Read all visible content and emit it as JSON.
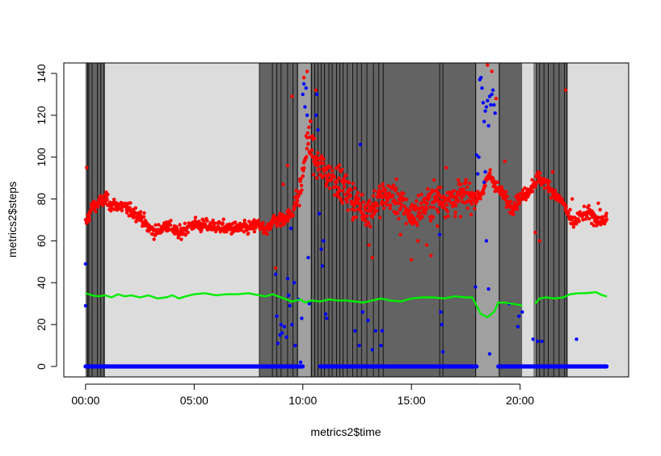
{
  "chart_data": {
    "type": "scatter",
    "title": "",
    "xlabel": "metrics2$time",
    "ylabel": "metrics2$steps",
    "xlim": [
      -1,
      25
    ],
    "ylim": [
      -5,
      145
    ],
    "xticks": [
      0,
      5,
      10,
      15,
      20
    ],
    "xtick_labels": [
      "00:00",
      "05:00",
      "10:00",
      "15:00",
      "20:00"
    ],
    "yticks": [
      0,
      20,
      40,
      60,
      80,
      100,
      120,
      140
    ],
    "ytick_labels": [
      "0",
      "20",
      "40",
      "60",
      "80",
      "100",
      "120",
      "140"
    ],
    "grid": false,
    "legend": "none",
    "colors": {
      "dark_band": "#636363",
      "mid_band": "#a0a0a0",
      "light_band": "#dcdcdc",
      "red_series": "#ff0000",
      "blue_series": "#0000ff",
      "green_series": "#00ee00"
    },
    "background_bands": [
      {
        "start": 0.0,
        "end": 0.9,
        "shade": "dark"
      },
      {
        "start": 0.9,
        "end": 8.0,
        "shade": "light"
      },
      {
        "start": 8.0,
        "end": 9.8,
        "shade": "dark"
      },
      {
        "start": 9.8,
        "end": 10.35,
        "shade": "mid"
      },
      {
        "start": 10.35,
        "end": 18.0,
        "shade": "dark"
      },
      {
        "start": 18.0,
        "end": 19.0,
        "shade": "mid"
      },
      {
        "start": 19.0,
        "end": 20.1,
        "shade": "dark"
      },
      {
        "start": 20.1,
        "end": 20.7,
        "shade": "light"
      },
      {
        "start": 20.7,
        "end": 22.2,
        "shade": "dark"
      },
      {
        "start": 22.2,
        "end": 25.0,
        "shade": "light"
      }
    ],
    "band_lines": [
      0.1,
      0.15,
      0.3,
      0.55,
      0.7,
      0.85,
      8.0,
      8.6,
      8.8,
      9.0,
      9.3,
      9.55,
      9.75,
      10.4,
      10.55,
      10.7,
      10.85,
      11.0,
      11.2,
      11.35,
      11.55,
      11.7,
      11.85,
      12.05,
      12.3,
      12.5,
      12.7,
      12.95,
      13.25,
      13.5,
      13.7,
      16.3,
      16.45,
      17.95,
      19.05,
      20.65,
      20.75,
      20.9,
      21.1,
      21.3,
      21.55,
      21.8,
      22.05,
      22.15
    ],
    "red_profile": [
      [
        0.0,
        68
      ],
      [
        0.3,
        76
      ],
      [
        0.6,
        78
      ],
      [
        0.9,
        80
      ],
      [
        1.2,
        77
      ],
      [
        1.5,
        77
      ],
      [
        1.8,
        76
      ],
      [
        2.1,
        74
      ],
      [
        2.5,
        72
      ],
      [
        2.9,
        66
      ],
      [
        3.3,
        64
      ],
      [
        3.7,
        68
      ],
      [
        4.0,
        66
      ],
      [
        4.3,
        63
      ],
      [
        4.6,
        66
      ],
      [
        5.0,
        68
      ],
      [
        5.5,
        67
      ],
      [
        6.0,
        67
      ],
      [
        6.5,
        66
      ],
      [
        7.0,
        66
      ],
      [
        7.5,
        66
      ],
      [
        8.0,
        68
      ],
      [
        8.3,
        64
      ],
      [
        8.6,
        70
      ],
      [
        9.0,
        70
      ],
      [
        9.5,
        73
      ],
      [
        9.9,
        85
      ],
      [
        10.1,
        100
      ],
      [
        10.3,
        110
      ],
      [
        10.6,
        97
      ],
      [
        11.0,
        93
      ],
      [
        11.5,
        90
      ],
      [
        12.0,
        84
      ],
      [
        12.5,
        78
      ],
      [
        13.0,
        74
      ],
      [
        13.5,
        80
      ],
      [
        14.0,
        82
      ],
      [
        14.5,
        78
      ],
      [
        15.0,
        72
      ],
      [
        15.5,
        76
      ],
      [
        16.0,
        80
      ],
      [
        16.5,
        80
      ],
      [
        17.0,
        80
      ],
      [
        17.5,
        82
      ],
      [
        18.0,
        80
      ],
      [
        18.3,
        84
      ],
      [
        18.6,
        92
      ],
      [
        18.8,
        88
      ],
      [
        19.2,
        82
      ],
      [
        19.6,
        76
      ],
      [
        20.0,
        80
      ],
      [
        20.4,
        84
      ],
      [
        20.8,
        90
      ],
      [
        21.2,
        88
      ],
      [
        21.6,
        82
      ],
      [
        22.0,
        78
      ],
      [
        22.4,
        68
      ],
      [
        22.8,
        72
      ],
      [
        23.2,
        73
      ],
      [
        23.6,
        70
      ],
      [
        24.0,
        70
      ]
    ],
    "red_outliers": [
      [
        0.05,
        95
      ],
      [
        8.75,
        47
      ],
      [
        8.95,
        73
      ],
      [
        9.1,
        87
      ],
      [
        9.3,
        96
      ],
      [
        9.5,
        129
      ],
      [
        9.7,
        84
      ],
      [
        10.05,
        138
      ],
      [
        10.2,
        141
      ],
      [
        10.6,
        132
      ],
      [
        11.6,
        95
      ],
      [
        12.3,
        70
      ],
      [
        12.5,
        78
      ],
      [
        13.05,
        58
      ],
      [
        13.2,
        52
      ],
      [
        14.5,
        63
      ],
      [
        15.0,
        51
      ],
      [
        15.3,
        60
      ],
      [
        15.7,
        58
      ],
      [
        15.9,
        53
      ],
      [
        16.2,
        67
      ],
      [
        16.6,
        95
      ],
      [
        17.1,
        80
      ],
      [
        18.5,
        144
      ],
      [
        18.7,
        141
      ],
      [
        18.9,
        128
      ],
      [
        19.3,
        98
      ],
      [
        19.9,
        82
      ],
      [
        20.7,
        64
      ],
      [
        20.9,
        60
      ],
      [
        21.3,
        86
      ],
      [
        21.5,
        93
      ],
      [
        22.1,
        132
      ],
      [
        22.4,
        80
      ],
      [
        23.6,
        78
      ]
    ],
    "blue_zero_segments": [
      [
        0.0,
        10.0
      ],
      [
        10.8,
        18.0
      ],
      [
        19.0,
        24.0
      ]
    ],
    "blue_points": [
      [
        0.0,
        49
      ],
      [
        0.0,
        29
      ],
      [
        8.75,
        44
      ],
      [
        8.8,
        24
      ],
      [
        8.85,
        11
      ],
      [
        8.95,
        15
      ],
      [
        9.0,
        20
      ],
      [
        9.05,
        16
      ],
      [
        9.15,
        19
      ],
      [
        9.25,
        14
      ],
      [
        9.3,
        42
      ],
      [
        9.35,
        34
      ],
      [
        9.4,
        29
      ],
      [
        9.45,
        66
      ],
      [
        9.5,
        20
      ],
      [
        9.6,
        40
      ],
      [
        9.65,
        10
      ],
      [
        9.8,
        32
      ],
      [
        9.9,
        2
      ],
      [
        9.95,
        23
      ],
      [
        10.0,
        130
      ],
      [
        10.05,
        135
      ],
      [
        10.1,
        124
      ],
      [
        10.15,
        133
      ],
      [
        10.2,
        120
      ],
      [
        10.25,
        52
      ],
      [
        10.3,
        30
      ],
      [
        10.6,
        120
      ],
      [
        10.65,
        130
      ],
      [
        10.7,
        113
      ],
      [
        10.75,
        73
      ],
      [
        10.85,
        56
      ],
      [
        10.9,
        48
      ],
      [
        10.95,
        60
      ],
      [
        11.05,
        25
      ],
      [
        11.1,
        23
      ],
      [
        12.4,
        17
      ],
      [
        12.6,
        10
      ],
      [
        12.65,
        106
      ],
      [
        12.75,
        26
      ],
      [
        13.0,
        22
      ],
      [
        13.2,
        8
      ],
      [
        13.35,
        17
      ],
      [
        13.6,
        10
      ],
      [
        13.65,
        17
      ],
      [
        16.3,
        63
      ],
      [
        16.35,
        26
      ],
      [
        16.4,
        20
      ],
      [
        16.45,
        7
      ],
      [
        17.95,
        38
      ],
      [
        18.0,
        101
      ],
      [
        18.05,
        92
      ],
      [
        18.1,
        100
      ],
      [
        18.15,
        137
      ],
      [
        18.2,
        138
      ],
      [
        18.25,
        133
      ],
      [
        18.3,
        126
      ],
      [
        18.35,
        117
      ],
      [
        18.4,
        122
      ],
      [
        18.45,
        124
      ],
      [
        18.5,
        127
      ],
      [
        18.55,
        115
      ],
      [
        18.6,
        129
      ],
      [
        18.65,
        125
      ],
      [
        18.7,
        130
      ],
      [
        18.75,
        132
      ],
      [
        18.8,
        125
      ],
      [
        18.85,
        121
      ],
      [
        18.35,
        88
      ],
      [
        18.4,
        93
      ],
      [
        18.45,
        60
      ],
      [
        18.55,
        37
      ],
      [
        18.6,
        6
      ],
      [
        19.5,
        30
      ],
      [
        19.9,
        19
      ],
      [
        19.95,
        24
      ],
      [
        20.1,
        26
      ],
      [
        20.6,
        13
      ],
      [
        20.8,
        12
      ],
      [
        21.0,
        12
      ],
      [
        22.6,
        13
      ]
    ],
    "green_profile": [
      [
        0.0,
        35
      ],
      [
        0.3,
        34
      ],
      [
        0.6,
        33.5
      ],
      [
        0.9,
        34
      ],
      [
        1.2,
        33
      ],
      [
        1.5,
        34.5
      ],
      [
        1.8,
        33.5
      ],
      [
        2.1,
        34
      ],
      [
        2.5,
        33
      ],
      [
        2.9,
        34
      ],
      [
        3.3,
        32.5
      ],
      [
        3.7,
        33
      ],
      [
        4.0,
        34
      ],
      [
        4.3,
        32.5
      ],
      [
        4.6,
        33.5
      ],
      [
        5.0,
        34.5
      ],
      [
        5.5,
        35
      ],
      [
        6.0,
        34
      ],
      [
        6.5,
        34.5
      ],
      [
        7.0,
        34.5
      ],
      [
        7.5,
        35
      ],
      [
        8.0,
        34
      ],
      [
        8.3,
        33.5
      ],
      [
        8.6,
        34.5
      ],
      [
        9.0,
        33
      ],
      [
        9.5,
        31
      ],
      [
        9.9,
        32
      ],
      [
        10.1,
        30.5
      ],
      [
        10.4,
        31.5
      ],
      [
        10.8,
        31
      ],
      [
        11.2,
        32
      ],
      [
        11.6,
        31.5
      ],
      [
        12.0,
        31.5
      ],
      [
        12.4,
        31
      ],
      [
        12.8,
        30.5
      ],
      [
        13.2,
        31.5
      ],
      [
        13.6,
        32.5
      ],
      [
        14.0,
        31.5
      ],
      [
        14.5,
        31
      ],
      [
        15.0,
        32.5
      ],
      [
        15.5,
        33
      ],
      [
        16.0,
        33
      ],
      [
        16.5,
        32.5
      ],
      [
        17.0,
        33.5
      ],
      [
        17.5,
        33
      ],
      [
        17.8,
        33
      ],
      [
        18.0,
        29
      ],
      [
        18.2,
        25
      ],
      [
        18.5,
        23.5
      ],
      [
        18.8,
        26
      ],
      [
        19.0,
        30.5
      ],
      [
        19.3,
        30.5
      ],
      [
        19.6,
        30
      ],
      [
        19.9,
        29.5
      ],
      [
        20.1,
        29
      ]
    ],
    "green_profile_2": [
      [
        20.7,
        30
      ],
      [
        20.9,
        32.5
      ],
      [
        21.2,
        33
      ],
      [
        21.6,
        32.5
      ],
      [
        22.0,
        33
      ],
      [
        22.3,
        34.5
      ],
      [
        22.7,
        35
      ],
      [
        23.0,
        35
      ],
      [
        23.5,
        35.5
      ],
      [
        23.8,
        34
      ],
      [
        24.0,
        33.5
      ]
    ]
  }
}
